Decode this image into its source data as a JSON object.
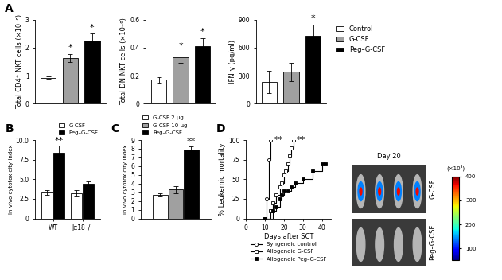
{
  "chart_data": [
    {
      "panel": "A",
      "type": "bar",
      "y_label": "Total CD4⁺ NKT cells (×10⁻⁶)",
      "categories": [
        "Control",
        "G-CSF",
        "Peg–G-CSF"
      ],
      "values": [
        0.93,
        1.63,
        2.25
      ],
      "errors": [
        0.05,
        0.15,
        0.25
      ],
      "colors": [
        "#ffffff",
        "#a0a0a0",
        "#000000"
      ],
      "significance": [
        null,
        "*",
        "*"
      ],
      "ylim": [
        0,
        3
      ],
      "yticks": [
        0,
        1,
        2,
        3
      ],
      "tick_labels": "y"
    },
    {
      "type": "bar",
      "y_label": "Total DN NKT cells (×10⁻⁶)",
      "categories": [
        "Control",
        "G-CSF",
        "Peg–G-CSF"
      ],
      "values": [
        0.17,
        0.33,
        0.41
      ],
      "errors": [
        0.02,
        0.04,
        0.06
      ],
      "colors": [
        "#ffffff",
        "#a0a0a0",
        "#000000"
      ],
      "significance": [
        null,
        "*",
        "*"
      ],
      "ylim": [
        0,
        0.6
      ],
      "yticks": [
        0,
        0.2,
        0.4,
        0.6
      ],
      "tick_labels": "y"
    },
    {
      "type": "bar",
      "y_label": "IFN-γ (pg/ml)",
      "categories": [
        "Control",
        "G-CSF",
        "Peg–G-CSF"
      ],
      "values": [
        230,
        340,
        730
      ],
      "errors": [
        120,
        100,
        120
      ],
      "colors": [
        "#ffffff",
        "#a0a0a0",
        "#000000"
      ],
      "significance": [
        null,
        null,
        "*"
      ],
      "ylim": [
        0,
        900
      ],
      "yticks": [
        0,
        300,
        600,
        900
      ],
      "tick_labels": "y",
      "legend": "right"
    },
    {
      "panel": "B",
      "type": "grouped_bar",
      "y_label": "In vivo cytotoxicity index",
      "categories": [
        "WT",
        "Jα18⁻/⁻"
      ],
      "series": [
        {
          "name": "G-CSF",
          "color": "#ffffff",
          "values": [
            3.3,
            3.2
          ],
          "errors": [
            0.3,
            0.4
          ],
          "significance": [
            null,
            null
          ]
        },
        {
          "name": "Peg–G-CSF",
          "color": "#000000",
          "values": [
            8.4,
            4.4
          ],
          "errors": [
            0.9,
            0.3
          ],
          "significance": [
            "**",
            null
          ]
        }
      ],
      "ylim": [
        0,
        10
      ],
      "yticks": [
        0,
        2.5,
        {
          "value": 5,
          "label": "5.0"
        },
        7.5,
        {
          "value": 10,
          "label": "10.0"
        }
      ],
      "legend": "top right"
    },
    {
      "panel": "C",
      "type": "grouped_bar",
      "y_label": "In vivo cytotoxicity index",
      "categories": [
        null
      ],
      "series": [
        {
          "name": "G-CSF 2 μg",
          "color": "#ffffff",
          "values": [
            2.7
          ],
          "errors": [
            0.2
          ],
          "significance": [
            null
          ]
        },
        {
          "name": "G-CSF 10 μg",
          "color": "#a0a0a0",
          "values": [
            3.3
          ],
          "errors": [
            0.4
          ],
          "significance": [
            null
          ]
        },
        {
          "name": "Peg–G-CSF",
          "color": "#000000",
          "values": [
            7.9
          ],
          "errors": [
            0.4
          ],
          "significance": [
            "**"
          ]
        }
      ],
      "ylim": [
        0,
        9
      ],
      "yticks": [
        0,
        1,
        2,
        3,
        4,
        5,
        6,
        7,
        8,
        9
      ],
      "tick_labels": "y",
      "legend": "top left"
    },
    {
      "panel": "D",
      "type": "line",
      "line_style": "steps",
      "x_label": "Days after SCT",
      "y_label": "% Leukemic mortality",
      "series": [
        {
          "name": "Syngeneic control",
          "color": "#000000",
          "marker": "open_circle",
          "x": [
            10,
            11,
            12,
            13
          ],
          "values": [
            0,
            25,
            75,
            100
          ],
          "significance": "**"
        },
        {
          "name": "Allogeneic G-CSF",
          "color": "#000000",
          "marker": "open_square",
          "x": [
            10,
            13,
            14,
            16,
            18,
            19,
            20,
            21,
            22,
            23,
            24,
            25
          ],
          "values": [
            0,
            10,
            20,
            30,
            40,
            45,
            55,
            60,
            70,
            80,
            90,
            100
          ],
          "significance": "**"
        },
        {
          "name": "Allogeneic Peg–G-CSF",
          "color": "#000000",
          "marker": "square",
          "x": [
            10,
            14,
            16,
            18,
            19,
            20,
            22,
            24,
            26,
            30,
            35,
            40,
            42
          ],
          "values": [
            0,
            10,
            15,
            25,
            30,
            35,
            35,
            40,
            45,
            50,
            60,
            70,
            70
          ],
          "significance": null
        }
      ],
      "xlim": [
        0,
        45
      ],
      "xticks": [
        0,
        10,
        20,
        30,
        40
      ],
      "ylim": [
        0,
        100
      ],
      "yticks": [
        0,
        25,
        50,
        75,
        100
      ],
      "legend": "bottom"
    }
  ],
  "image_panel": {
    "title": "Day 20",
    "rows": [
      "G-CSF",
      "Peg–G-CSF"
    ],
    "colorbar": {
      "label": "(×10³)",
      "range": [
        50,
        400
      ],
      "ticks": [
        100,
        200,
        300,
        400
      ]
    }
  }
}
